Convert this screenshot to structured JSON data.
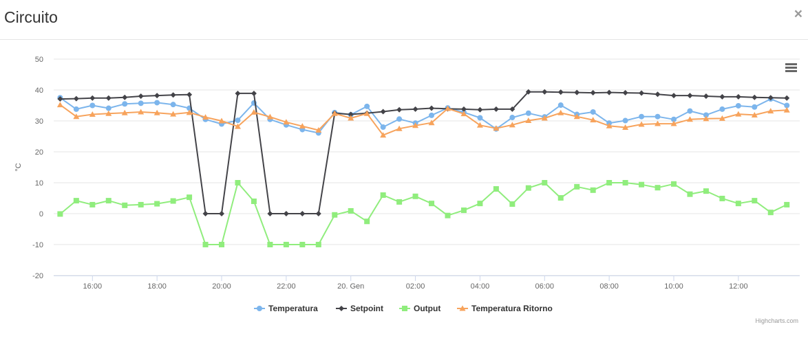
{
  "modal": {
    "title": "Circuito",
    "close_label": "×"
  },
  "credits": "Highcharts.com",
  "colors": {
    "Temperatura": "#7cb5ec",
    "Setpoint": "#434348",
    "Output": "#90ed7d",
    "Temperatura Ritorno": "#f7a35c"
  },
  "menu_icon": "hamburger-menu-icon",
  "chart_data": {
    "type": "line",
    "title": "",
    "xlabel": "",
    "ylabel": "°C",
    "ylim": [
      -20,
      50
    ],
    "yticks": [
      -20,
      -10,
      0,
      10,
      20,
      30,
      40,
      50
    ],
    "xlim": [
      14.8,
      37.9
    ],
    "xticks": [
      {
        "x": 16,
        "label": "16:00"
      },
      {
        "x": 18,
        "label": "18:00"
      },
      {
        "x": 20,
        "label": "20:00"
      },
      {
        "x": 22,
        "label": "22:00"
      },
      {
        "x": 24,
        "label": "20. Gen"
      },
      {
        "x": 26,
        "label": "02:00"
      },
      {
        "x": 28,
        "label": "04:00"
      },
      {
        "x": 30,
        "label": "06:00"
      },
      {
        "x": 32,
        "label": "08:00"
      },
      {
        "x": 34,
        "label": "10:00"
      },
      {
        "x": 36,
        "label": "12:00"
      }
    ],
    "x": [
      15.0,
      15.5,
      16.0,
      16.5,
      17.0,
      17.5,
      18.0,
      18.5,
      19.0,
      19.5,
      20.0,
      20.5,
      21.0,
      21.5,
      22.0,
      22.5,
      23.0,
      23.5,
      24.0,
      24.5,
      25.0,
      25.5,
      26.0,
      26.5,
      27.0,
      27.5,
      28.0,
      28.5,
      29.0,
      29.5,
      30.0,
      30.5,
      31.0,
      31.5,
      32.0,
      32.5,
      33.0,
      33.5,
      34.0,
      34.5,
      35.0,
      35.5,
      36.0,
      36.5,
      37.0,
      37.5
    ],
    "grid": true,
    "legend_position": "bottom-center",
    "series": [
      {
        "name": "Temperatura",
        "marker": "circle",
        "values": [
          37.5,
          33.8,
          35.0,
          34.1,
          35.5,
          35.7,
          35.9,
          35.3,
          34.1,
          30.5,
          29.0,
          30.2,
          35.8,
          30.5,
          28.7,
          27.2,
          26.1,
          32.7,
          32.0,
          34.7,
          28.0,
          30.6,
          29.3,
          31.8,
          34.2,
          32.8,
          31.0,
          27.4,
          31.1,
          32.5,
          31.3,
          35.1,
          32.1,
          32.9,
          29.3,
          30.1,
          31.4,
          31.4,
          30.5,
          33.2,
          31.9,
          33.8,
          34.9,
          34.5,
          37.1,
          35.0
        ]
      },
      {
        "name": "Setpoint",
        "marker": "diamond",
        "values": [
          37.1,
          37.2,
          37.4,
          37.4,
          37.6,
          38.0,
          38.2,
          38.4,
          38.5,
          0,
          0,
          38.9,
          38.9,
          0,
          0,
          0,
          0,
          32.5,
          32.1,
          32.5,
          33.0,
          33.6,
          33.8,
          34.1,
          33.9,
          33.8,
          33.6,
          33.8,
          33.8,
          39.4,
          39.4,
          39.3,
          39.2,
          39.1,
          39.2,
          39.1,
          39.0,
          38.6,
          38.2,
          38.2,
          38.0,
          37.8,
          37.8,
          37.6,
          37.5,
          37.4
        ]
      },
      {
        "name": "Output",
        "marker": "square",
        "values": [
          -0.1,
          4.2,
          2.9,
          4.2,
          2.7,
          2.9,
          3.2,
          4.1,
          5.3,
          -10,
          -10,
          10,
          4.0,
          -10,
          -10,
          -10,
          -10,
          -0.4,
          0.9,
          -2.5,
          6.0,
          3.8,
          5.6,
          3.3,
          -0.6,
          1.1,
          3.3,
          8.0,
          3.1,
          8.3,
          10,
          5.1,
          8.7,
          7.6,
          10,
          10,
          9.4,
          8.4,
          9.6,
          6.3,
          7.3,
          4.9,
          3.3,
          4.2,
          0.4,
          2.9
        ]
      },
      {
        "name": "Temperatura Ritorno",
        "marker": "triangle",
        "values": [
          35.2,
          31.4,
          32.1,
          32.4,
          32.6,
          32.9,
          32.6,
          32.2,
          32.7,
          31.2,
          30.0,
          28.2,
          32.8,
          31.3,
          29.6,
          28.3,
          27.0,
          32.4,
          30.9,
          32.4,
          25.4,
          27.5,
          28.5,
          29.4,
          34.0,
          32.3,
          28.6,
          27.6,
          28.7,
          30.1,
          30.9,
          32.6,
          31.4,
          30.3,
          28.4,
          27.9,
          28.9,
          29.1,
          29.1,
          30.5,
          30.7,
          30.8,
          32.2,
          31.9,
          33.2,
          33.5
        ]
      }
    ]
  }
}
